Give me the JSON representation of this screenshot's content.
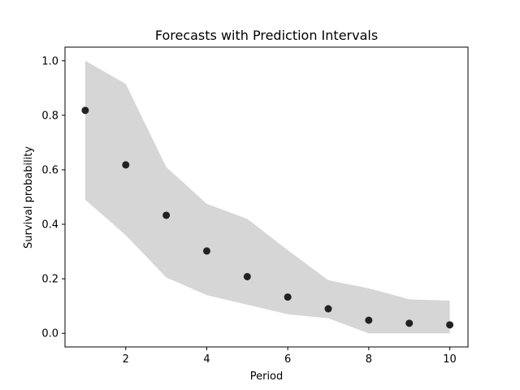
{
  "chart_data": {
    "type": "scatter",
    "title": "Forecasts with Prediction Intervals",
    "xlabel": "Period",
    "ylabel": "Survival probability",
    "xlim": [
      0.5,
      10.45
    ],
    "ylim": [
      -0.05,
      1.05
    ],
    "xticks": [
      2,
      4,
      6,
      8,
      10
    ],
    "yticks": [
      0.0,
      0.2,
      0.4,
      0.6,
      0.8,
      1.0
    ],
    "grid": false,
    "x": [
      1,
      2,
      3,
      4,
      5,
      6,
      7,
      8,
      9,
      10
    ],
    "series": [
      {
        "values": [
          0.818,
          0.618,
          0.433,
          0.302,
          0.208,
          0.133,
          0.09,
          0.048,
          0.037,
          0.031
        ],
        "color": "#222222"
      }
    ],
    "interval": {
      "lower": [
        0.49,
        0.36,
        0.205,
        0.14,
        0.105,
        0.07,
        0.055,
        0.0,
        0.0,
        0.0
      ],
      "upper": [
        1.0,
        0.915,
        0.61,
        0.475,
        0.42,
        0.305,
        0.195,
        0.165,
        0.125,
        0.12
      ],
      "color": "#d6d6d6"
    }
  }
}
